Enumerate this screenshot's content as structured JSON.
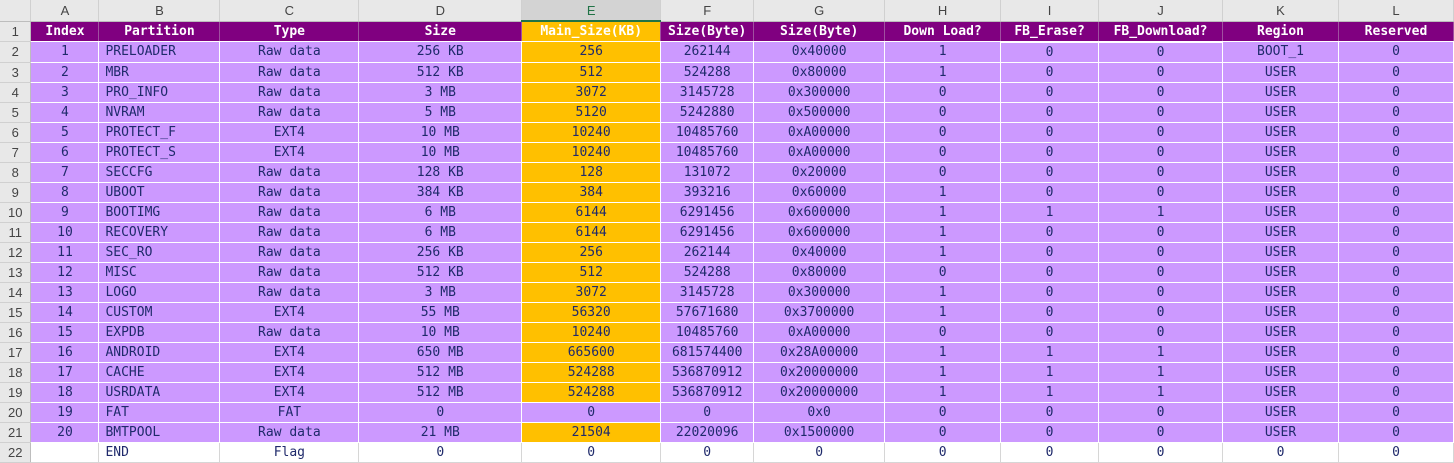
{
  "columns": [
    "A",
    "B",
    "C",
    "D",
    "E",
    "F",
    "G",
    "H",
    "I",
    "J",
    "K",
    "L"
  ],
  "selected_column": "E",
  "header_row_number": "1",
  "headers": [
    "Index",
    "Partition",
    "Type",
    "Size",
    "Main_Size(KB)",
    "Size(Byte)",
    "Size(Byte)",
    "Down Load?",
    "FB_Erase?",
    "FB_Download?",
    "Region",
    "Reserved"
  ],
  "rows": [
    {
      "rn": "2",
      "cells": [
        "1",
        "PRELOADER",
        "Raw data",
        "256 KB",
        "256",
        "262144",
        "0x40000",
        "1",
        "0",
        "0",
        "BOOT_1",
        "0"
      ]
    },
    {
      "rn": "3",
      "cells": [
        "2",
        "MBR",
        "Raw data",
        "512 KB",
        "512",
        "524288",
        "0x80000",
        "1",
        "0",
        "0",
        "USER",
        "0"
      ]
    },
    {
      "rn": "4",
      "cells": [
        "3",
        "PRO_INFO",
        "Raw data",
        "3 MB",
        "3072",
        "3145728",
        "0x300000",
        "0",
        "0",
        "0",
        "USER",
        "0"
      ]
    },
    {
      "rn": "5",
      "cells": [
        "4",
        "NVRAM",
        "Raw data",
        "5 MB",
        "5120",
        "5242880",
        "0x500000",
        "0",
        "0",
        "0",
        "USER",
        "0"
      ]
    },
    {
      "rn": "6",
      "cells": [
        "5",
        "PROTECT_F",
        "EXT4",
        "10 MB",
        "10240",
        "10485760",
        "0xA00000",
        "0",
        "0",
        "0",
        "USER",
        "0"
      ]
    },
    {
      "rn": "7",
      "cells": [
        "6",
        "PROTECT_S",
        "EXT4",
        "10 MB",
        "10240",
        "10485760",
        "0xA00000",
        "0",
        "0",
        "0",
        "USER",
        "0"
      ]
    },
    {
      "rn": "8",
      "cells": [
        "7",
        "SECCFG",
        "Raw data",
        "128 KB",
        "128",
        "131072",
        "0x20000",
        "0",
        "0",
        "0",
        "USER",
        "0"
      ]
    },
    {
      "rn": "9",
      "cells": [
        "8",
        "UBOOT",
        "Raw data",
        "384 KB",
        "384",
        "393216",
        "0x60000",
        "1",
        "0",
        "0",
        "USER",
        "0"
      ]
    },
    {
      "rn": "10",
      "cells": [
        "9",
        "BOOTIMG",
        "Raw data",
        "6 MB",
        "6144",
        "6291456",
        "0x600000",
        "1",
        "1",
        "1",
        "USER",
        "0"
      ]
    },
    {
      "rn": "11",
      "cells": [
        "10",
        "RECOVERY",
        "Raw data",
        "6 MB",
        "6144",
        "6291456",
        "0x600000",
        "1",
        "0",
        "0",
        "USER",
        "0"
      ]
    },
    {
      "rn": "12",
      "cells": [
        "11",
        "SEC_RO",
        "Raw data",
        "256 KB",
        "256",
        "262144",
        "0x40000",
        "1",
        "0",
        "0",
        "USER",
        "0"
      ]
    },
    {
      "rn": "13",
      "cells": [
        "12",
        "MISC",
        "Raw data",
        "512 KB",
        "512",
        "524288",
        "0x80000",
        "0",
        "0",
        "0",
        "USER",
        "0"
      ]
    },
    {
      "rn": "14",
      "cells": [
        "13",
        "LOGO",
        "Raw data",
        "3 MB",
        "3072",
        "3145728",
        "0x300000",
        "1",
        "0",
        "0",
        "USER",
        "0"
      ]
    },
    {
      "rn": "15",
      "cells": [
        "14",
        "CUSTOM",
        "EXT4",
        "55 MB",
        "56320",
        "57671680",
        "0x3700000",
        "1",
        "0",
        "0",
        "USER",
        "0"
      ]
    },
    {
      "rn": "16",
      "cells": [
        "15",
        "EXPDB",
        "Raw data",
        "10 MB",
        "10240",
        "10485760",
        "0xA00000",
        "0",
        "0",
        "0",
        "USER",
        "0"
      ]
    },
    {
      "rn": "17",
      "cells": [
        "16",
        "ANDROID",
        "EXT4",
        "650 MB",
        "665600",
        "681574400",
        "0x28A00000",
        "1",
        "1",
        "1",
        "USER",
        "0"
      ]
    },
    {
      "rn": "18",
      "cells": [
        "17",
        "CACHE",
        "EXT4",
        "512 MB",
        "524288",
        "536870912",
        "0x20000000",
        "1",
        "1",
        "1",
        "USER",
        "0"
      ]
    },
    {
      "rn": "19",
      "cells": [
        "18",
        "USRDATA",
        "EXT4",
        "512 MB",
        "524288",
        "536870912",
        "0x20000000",
        "1",
        "1",
        "1",
        "USER",
        "0"
      ]
    },
    {
      "rn": "20",
      "cells": [
        "19",
        "FAT",
        "FAT",
        "0",
        "0",
        "0",
        "0x0",
        "0",
        "0",
        "0",
        "USER",
        "0"
      ]
    },
    {
      "rn": "21",
      "cells": [
        "20",
        "BMTPOOL",
        "Raw data",
        "21 MB",
        "21504",
        "22020096",
        "0x1500000",
        "0",
        "0",
        "0",
        "USER",
        "0"
      ]
    }
  ],
  "last_row": {
    "rn": "22",
    "cells": [
      "",
      "END",
      "Flag",
      "0",
      "0",
      "0",
      "0",
      "0",
      "0",
      "0",
      "0",
      "0"
    ]
  },
  "colors": {
    "header_bg": "#800080",
    "row_bg": "#cc99ff",
    "highlight": "#ffc000",
    "text": "#1f2a6b"
  }
}
